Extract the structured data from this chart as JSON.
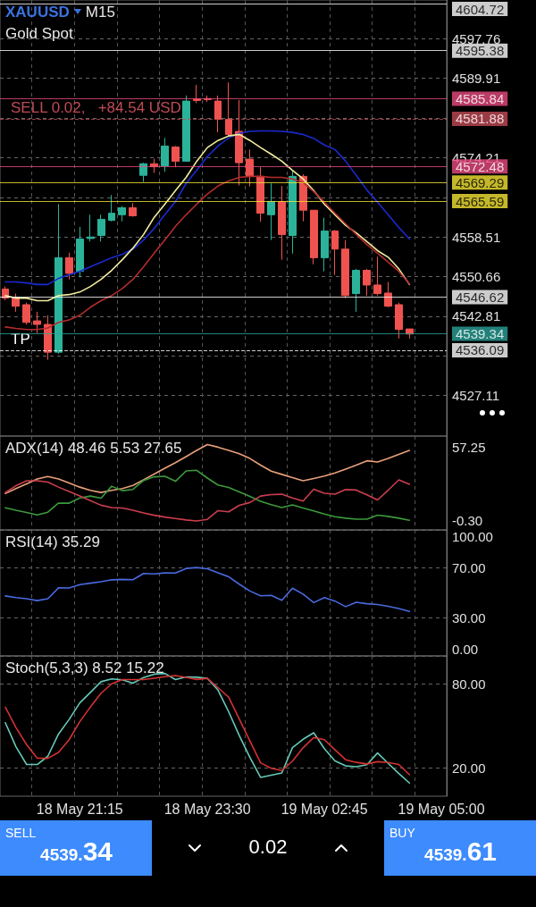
{
  "chart_data": [
    {
      "type": "candlestick",
      "title": "XAUUSD",
      "subtitle": "Gold Spot",
      "annotations": [
        "M15",
        {
          "text": "SELL 0.02,   +84.54 USD",
          "y": 4581.88
        },
        {
          "text": "TP",
          "y": 4536.09
        }
      ],
      "categories": [
        null,
        null,
        null,
        null,
        null,
        null,
        null,
        null,
        null,
        null,
        null,
        null,
        null,
        null,
        null,
        null,
        null,
        null,
        null,
        null,
        null,
        null,
        null,
        null,
        null,
        null,
        null,
        null,
        null,
        null,
        null,
        null,
        null,
        null,
        null,
        null,
        null,
        null,
        null,
        null,
        null,
        null
      ],
      "ohlc": [
        [
          4548.2,
          4548.7,
          4546.0,
          4546.4
        ],
        [
          4546.6,
          4547.3,
          4543.7,
          4544.8
        ],
        [
          4545.1,
          4545.5,
          4541.2,
          4541.6
        ],
        [
          4541.9,
          4543.7,
          4539.5,
          4541.2
        ],
        [
          4541.2,
          4543.0,
          4534.2,
          4535.7
        ],
        [
          4535.7,
          4565.0,
          4535.4,
          4554.4
        ],
        [
          4554.4,
          4555.4,
          4550.1,
          4551.3
        ],
        [
          4551.7,
          4560.5,
          4550.5,
          4558.1
        ],
        [
          4558.2,
          4562.9,
          4557.6,
          4558.5
        ],
        [
          4558.8,
          4562.9,
          4557.6,
          4562.0
        ],
        [
          4561.8,
          4566.8,
          4561.6,
          4563.2
        ],
        [
          4562.9,
          4564.6,
          4561.6,
          4564.3
        ],
        [
          4564.3,
          4565.2,
          4562.5,
          4562.7
        ],
        [
          4570.7,
          4573.2,
          4569.4,
          4573.0
        ],
        [
          4573.0,
          4574.0,
          4571.2,
          4572.4
        ],
        [
          4572.6,
          4578.1,
          4571.4,
          4576.5
        ],
        [
          4576.3,
          4576.5,
          4572.3,
          4573.5
        ],
        [
          4573.5,
          4586.5,
          4573.5,
          4585.4
        ],
        [
          4585.8,
          4588.6,
          4585.0,
          4585.5
        ],
        [
          4585.9,
          4586.5,
          4585.2,
          4585.7
        ],
        [
          4585.4,
          4586.5,
          4579.2,
          4581.8
        ],
        [
          4581.8,
          4589.1,
          4578.5,
          4578.8
        ],
        [
          4579.4,
          4585.6,
          4568.7,
          4573.2
        ],
        [
          4573.9,
          4575.8,
          4568.5,
          4570.5
        ],
        [
          4570.5,
          4572.3,
          4561.5,
          4563.2
        ],
        [
          4562.9,
          4569.1,
          4557.9,
          4565.5
        ],
        [
          4565.5,
          4568.6,
          4554.0,
          4559.0
        ],
        [
          4558.8,
          4571.7,
          4555.2,
          4570.5
        ],
        [
          4570.5,
          4570.9,
          4561.6,
          4563.8
        ],
        [
          4563.8,
          4563.8,
          4553.1,
          4554.4
        ],
        [
          4554.4,
          4562.3,
          4551.7,
          4559.7
        ],
        [
          4559.7,
          4559.9,
          4551.0,
          4556.1
        ],
        [
          4556.1,
          4557.9,
          4546.4,
          4546.9
        ],
        [
          4547.3,
          4552.2,
          4543.7,
          4551.9
        ],
        [
          4551.9,
          4552.2,
          4546.9,
          4549.0
        ],
        [
          4549.0,
          4554.6,
          4546.9,
          4547.3
        ],
        [
          4547.4,
          4549.6,
          4544.6,
          4544.8
        ],
        [
          4545.1,
          4545.5,
          4538.4,
          4540.2
        ],
        [
          4540.3,
          4540.3,
          4538.4,
          4539.3
        ],
        null,
        null,
        null
      ],
      "colors": [
        "#ef5350",
        "#ef5350",
        "#ef5350",
        "#ef5350",
        "#ef5350",
        "#2bb39a",
        "#ef5350",
        "#2bb39a",
        "#2bb39a",
        "#2bb39a",
        "#2bb39a",
        "#2bb39a",
        "#ef5350",
        "#2bb39a",
        "#ef5350",
        "#2bb39a",
        "#ef5350",
        "#2bb39a",
        "#ef5350",
        "#ef5350",
        "#ef5350",
        "#ef5350",
        "#ef5350",
        "#ef5350",
        "#ef5350",
        "#2bb39a",
        "#ef5350",
        "#2bb39a",
        "#ef5350",
        "#ef5350",
        "#2bb39a",
        "#ef5350",
        "#ef5350",
        "#2bb39a",
        "#ef5350",
        "#ef5350",
        "#ef5350",
        "#ef5350",
        "#ef5350",
        null,
        null,
        null
      ],
      "series": [
        {
          "type": "line",
          "color": "#1a2ad0",
          "values": [
            4549.6,
            4549.6,
            4549.4,
            4549.1,
            4549.1,
            4550.3,
            4551.0,
            4551.7,
            4552.6,
            4553.5,
            4554.4,
            4555.1,
            4556.1,
            4557.9,
            4560.2,
            4562.9,
            4565.5,
            4569.1,
            4571.7,
            4574.4,
            4576.5,
            4578.1,
            4579.0,
            4579.4,
            4579.5,
            4579.5,
            4579.4,
            4579.2,
            4578.8,
            4578.0,
            4576.7,
            4575.8,
            4573.5,
            4570.7,
            4567.8,
            4565.4,
            4562.9,
            4560.4,
            4558.1,
            null,
            null,
            null
          ]
        },
        {
          "type": "line",
          "color": "#f3eea0",
          "values": [
            4546.9,
            4546.4,
            4546.4,
            4545.9,
            4545.9,
            4546.9,
            4547.1,
            4547.6,
            4548.7,
            4550.1,
            4551.9,
            4554.0,
            4556.3,
            4559.0,
            4562.4,
            4565.0,
            4567.7,
            4570.3,
            4573.5,
            4576.2,
            4577.6,
            4578.5,
            4578.8,
            4577.6,
            4576.2,
            4574.9,
            4573.5,
            4571.7,
            4570.0,
            4567.7,
            4565.0,
            4562.9,
            4560.8,
            4559.3,
            4557.6,
            4555.8,
            4554.5,
            4552.2,
            4549.1,
            null,
            null,
            null
          ]
        },
        {
          "type": "line",
          "color": "#b42c2c",
          "values": [
            4540.7,
            4540.4,
            4540.2,
            4540.2,
            4540.5,
            4541.6,
            4542.1,
            4543.0,
            4544.6,
            4545.9,
            4546.9,
            4548.3,
            4550.1,
            4552.6,
            4555.3,
            4557.9,
            4560.6,
            4562.9,
            4565.0,
            4567.0,
            4568.6,
            4569.6,
            4570.3,
            4570.5,
            4570.5,
            4570.3,
            4570.3,
            4570.0,
            4569.3,
            4567.5,
            4565.4,
            4563.2,
            4561.1,
            4559.0,
            4557.0,
            4555.3,
            4553.5,
            4551.7,
            4549.2,
            null,
            null,
            null
          ]
        }
      ],
      "ylim": [
        4519.1,
        4605.4
      ],
      "yticks": [
        4527.11,
        {
          "value": 4534.96,
          "label": null
        },
        4542.81,
        4550.66,
        4558.51,
        {
          "value": 4566.36,
          "label": null
        },
        4574.21,
        {
          "value": 4582.06,
          "label": null
        },
        4589.91,
        4597.76
      ],
      "ref_lines": [
        {
          "axis": "y",
          "value": 4604.72,
          "color": "#ffffff",
          "label": "4604.72"
        },
        {
          "axis": "y",
          "value": 4595.38,
          "color": "#ffffff",
          "label": "4595.38"
        },
        {
          "axis": "y",
          "value": 4585.84,
          "color": "#e84a7f",
          "label": "4585.84"
        },
        {
          "axis": "y",
          "value": 4581.88,
          "color": "#c04a55",
          "line_style": "dashed",
          "label": "4581.88"
        },
        {
          "axis": "y",
          "value": 4572.48,
          "color": "#e84a7f",
          "label": "4572.48"
        },
        {
          "axis": "y",
          "value": 4569.29,
          "color": "#f5e634",
          "label": "4569.29"
        },
        {
          "axis": "y",
          "value": 4565.59,
          "color": "#f5e634",
          "label": "4565.59"
        },
        {
          "axis": "y",
          "value": 4546.62,
          "color": "#ffffff",
          "label": "4546.62"
        },
        {
          "axis": "y",
          "value": 4539.34,
          "color": "#2aa198",
          "label": "4539.34"
        },
        {
          "axis": "y",
          "value": 4536.09,
          "color": "#ffffff",
          "line_style": "dashed",
          "label": "4536.09"
        }
      ],
      "grid": true,
      "marker": "none",
      "tick_labels": "y"
    },
    {
      "type": "line",
      "title": "ADX(14) 48.46 5.53 27.65",
      "categories": [
        null,
        null,
        null,
        null,
        null,
        null,
        null,
        null,
        null,
        null,
        null,
        null,
        null,
        null,
        null,
        null,
        null,
        null,
        null,
        null,
        null,
        null,
        null,
        null,
        null,
        null,
        null,
        null,
        null,
        null,
        null,
        null,
        null,
        null,
        null,
        null,
        null,
        null,
        null,
        null,
        null,
        null
      ],
      "series": [
        {
          "color": "#e9a07a",
          "values": [
            20.5,
            24.4,
            28.2,
            32.0,
            34.0,
            32.0,
            28.8,
            25.6,
            23.1,
            21.4,
            23.1,
            24.5,
            26.9,
            31.4,
            35.9,
            40.4,
            44.8,
            49.6,
            54.5,
            59.0,
            57.0,
            54.5,
            51.9,
            48.1,
            42.9,
            38.2,
            35.6,
            33.1,
            30.6,
            32.4,
            34.3,
            36.7,
            39.7,
            42.9,
            46.3,
            45.4,
            48.1,
            51.3,
            54.5,
            null,
            null,
            null
          ]
        },
        {
          "color": "#3c9a3c",
          "values": [
            9.4,
            7.4,
            5.7,
            3.7,
            5.9,
            13.1,
            13.0,
            17.1,
            18.6,
            16.9,
            26.3,
            22.8,
            23.8,
            30.8,
            33.7,
            34.1,
            30.2,
            38.3,
            38.8,
            32.7,
            27.3,
            25.3,
            21.8,
            18.3,
            14.4,
            11.9,
            9.5,
            11.7,
            9.2,
            6.9,
            4.5,
            2.3,
            1.2,
            0.4,
            0.4,
            3.6,
            2.6,
            1.2,
            -0.4,
            null,
            null,
            null
          ]
        },
        {
          "color": "#cc3e4e",
          "values": [
            21.3,
            26.7,
            30.6,
            30.6,
            29.5,
            25.6,
            22.2,
            18.6,
            15.0,
            11.4,
            9.5,
            9.2,
            7.4,
            5.4,
            3.5,
            2.1,
            1.0,
            -0.2,
            -1.0,
            0.3,
            7.1,
            6.2,
            11.3,
            13.5,
            18.6,
            19.7,
            20.0,
            17.1,
            14.6,
            24.0,
            20.8,
            20.1,
            23.7,
            23.3,
            19.6,
            15.5,
            23.2,
            31.3,
            27.8,
            null,
            null,
            null
          ]
        }
      ],
      "ylim": [
        -8.0,
        65.7
      ],
      "yticks": [
        {
          "value": -0.3,
          "label": "-0.30"
        },
        57.25
      ],
      "grid": "x",
      "marker": "none",
      "tick_labels": "y"
    },
    {
      "type": "line",
      "title": "RSI(14) 35.29",
      "categories": [
        null,
        null,
        null,
        null,
        null,
        null,
        null,
        null,
        null,
        null,
        null,
        null,
        null,
        null,
        null,
        null,
        null,
        null,
        null,
        null,
        null,
        null,
        null,
        null,
        null,
        null,
        null,
        null,
        null,
        null,
        null,
        null,
        null,
        null,
        null,
        null,
        null,
        null,
        null,
        null,
        null,
        null
      ],
      "series": [
        {
          "color": "#4a6ae0",
          "values": [
            47.6,
            46.3,
            45.4,
            43.9,
            45.4,
            54.0,
            53.9,
            56.6,
            57.7,
            58.9,
            60.4,
            60.7,
            60.5,
            65.4,
            65.1,
            65.9,
            65.8,
            69.4,
            70.1,
            69.1,
            66.0,
            62.8,
            56.9,
            51.5,
            47.7,
            48.0,
            44.1,
            53.7,
            49.0,
            42.3,
            46.3,
            43.5,
            39.1,
            42.6,
            41.4,
            40.8,
            39.3,
            37.6,
            35.3,
            null,
            null,
            null
          ]
        }
      ],
      "ylim": [
        0,
        100
      ],
      "yticks": [
        {
          "value": 0,
          "label": "0.00"
        },
        {
          "value": 30,
          "label": "30.00"
        },
        {
          "value": 70,
          "label": "70.00"
        },
        {
          "value": 100,
          "label": "100.00"
        }
      ],
      "grid": true,
      "marker": "none",
      "tick_labels": "y"
    },
    {
      "type": "line",
      "title": "Stoch(5,3,3) 8.52 15.22",
      "annotations": [
        "SELL",
        "4539.34",
        "0.02",
        "BUY",
        "4539.61"
      ],
      "categories": [
        null,
        null,
        null,
        null,
        null,
        null,
        null,
        "18 May 21:15",
        null,
        null,
        null,
        null,
        null,
        null,
        null,
        null,
        null,
        null,
        null,
        "18 May 23:30",
        null,
        null,
        null,
        null,
        null,
        null,
        null,
        null,
        null,
        null,
        "19 May 02:45",
        null,
        null,
        null,
        null,
        null,
        null,
        null,
        null,
        null,
        null,
        "19 May 05:00"
      ],
      "series": [
        {
          "color": "#66c9b8",
          "values": [
            52.4,
            35.3,
            22.6,
            22.6,
            28.5,
            44.3,
            54.7,
            66.5,
            74.0,
            81.6,
            83.6,
            83.0,
            80.6,
            84.6,
            87.0,
            87.5,
            83.1,
            85.0,
            84.8,
            84.0,
            75.6,
            60.2,
            43.2,
            27.6,
            13.4,
            15.0,
            16.6,
            34.6,
            40.6,
            45.2,
            33.9,
            25.2,
            21.6,
            21.0,
            22.4,
            30.8,
            23.4,
            16.2,
            9.4,
            null,
            null,
            null
          ]
        },
        {
          "color": "#d43232",
          "values": [
            63.4,
            49.0,
            36.8,
            27.1,
            27.0,
            31.2,
            40.3,
            53.1,
            63.6,
            73.4,
            80.1,
            83.1,
            83.1,
            83.1,
            84.1,
            85.2,
            86.0,
            84.7,
            83.2,
            84.0,
            77.4,
            70.6,
            55.0,
            39.4,
            23.8,
            19.9,
            18.3,
            25.0,
            34.5,
            41.8,
            40.3,
            33.0,
            26.0,
            24.1,
            23.0,
            24.6,
            24.0,
            22.6,
            15.3,
            null,
            null,
            null
          ]
        }
      ],
      "ylim": [
        0,
        100
      ],
      "yticks": [
        {
          "value": 20,
          "label": "20.00"
        },
        {
          "value": 80,
          "label": "80.00"
        }
      ],
      "grid": true,
      "marker": "none"
    }
  ]
}
